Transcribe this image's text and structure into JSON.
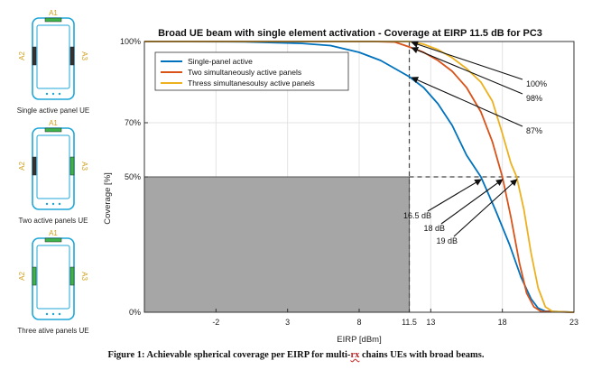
{
  "left_panel": {
    "phones": [
      {
        "caption": "Single active panel UE",
        "antenna_labels": [
          "A1",
          "A2",
          "A3"
        ]
      },
      {
        "caption": "Two active panels UE",
        "antenna_labels": [
          "A1",
          "A2",
          "A3"
        ]
      },
      {
        "caption": "Three ative panels UE",
        "antenna_labels": [
          "A1",
          "A2",
          "A3"
        ]
      }
    ],
    "colors": {
      "outline": "#1ea6d8",
      "antenna": "#d4a017",
      "antenna_active": "#3cb44b"
    }
  },
  "figure_caption": {
    "prefix": "Figure 1: Achievable spherical coverage per EIRP for multi-",
    "rx": "rx",
    "suffix": " chains UEs with broad beams."
  },
  "chart_data": {
    "type": "line",
    "title": "Broad UE beam with single element activation - Coverage at EIRP 11.5 dB for PC3",
    "xlabel": "EIRP [dBm]",
    "ylabel": "Coverage [%]",
    "xlim": [
      -7,
      23
    ],
    "ylim": [
      0,
      100
    ],
    "x_ticks": [
      -2,
      3,
      8,
      11.5,
      13,
      18,
      23
    ],
    "y_ticks": [
      0,
      50,
      70,
      100
    ],
    "y_tick_labels": [
      "0%",
      "50%",
      "70%",
      "100%"
    ],
    "grid": true,
    "legend_position": "top-left",
    "series": [
      {
        "name": "Single-panel active",
        "color": "#0072bd",
        "points": [
          [
            -7,
            100
          ],
          [
            0,
            99.9
          ],
          [
            4,
            99.3
          ],
          [
            6,
            98.5
          ],
          [
            8,
            96
          ],
          [
            9.5,
            93
          ],
          [
            10.5,
            90
          ],
          [
            11.5,
            87
          ],
          [
            12.5,
            83
          ],
          [
            13.5,
            77
          ],
          [
            14.5,
            69
          ],
          [
            15.5,
            58
          ],
          [
            16.5,
            50
          ],
          [
            17.5,
            38
          ],
          [
            18.5,
            25
          ],
          [
            19.3,
            13
          ],
          [
            20,
            5
          ],
          [
            20.5,
            1.5
          ],
          [
            21,
            0.4
          ],
          [
            23,
            0
          ]
        ]
      },
      {
        "name": "Two simultaneously active panels",
        "color": "#d95319",
        "points": [
          [
            -7,
            100
          ],
          [
            9,
            100
          ],
          [
            10.5,
            99.8
          ],
          [
            11.5,
            98
          ],
          [
            12.5,
            96
          ],
          [
            13.5,
            93
          ],
          [
            14.5,
            89
          ],
          [
            15.5,
            83
          ],
          [
            16.5,
            74
          ],
          [
            17.3,
            63
          ],
          [
            18,
            50
          ],
          [
            18.6,
            35
          ],
          [
            19.2,
            18
          ],
          [
            19.7,
            7
          ],
          [
            20.2,
            2
          ],
          [
            20.7,
            0.3
          ],
          [
            23,
            0
          ]
        ]
      },
      {
        "name": "Thress simultanesoulsy active panels",
        "color": "#edb120",
        "points": [
          [
            -7,
            100
          ],
          [
            10,
            100
          ],
          [
            11.5,
            100
          ],
          [
            12.5,
            99
          ],
          [
            13.5,
            97
          ],
          [
            14.5,
            94
          ],
          [
            15.5,
            90
          ],
          [
            16.5,
            85
          ],
          [
            17.3,
            78
          ],
          [
            18,
            66
          ],
          [
            18.6,
            55
          ],
          [
            19,
            50
          ],
          [
            19.5,
            38
          ],
          [
            20,
            22
          ],
          [
            20.5,
            9
          ],
          [
            21,
            2
          ],
          [
            21.5,
            0.3
          ],
          [
            23,
            0
          ]
        ]
      }
    ],
    "annotations": [
      {
        "text": "100%",
        "target": [
          11.5,
          100
        ]
      },
      {
        "text": "98%",
        "target": [
          11.5,
          98
        ]
      },
      {
        "text": "87%",
        "target": [
          11.5,
          87
        ]
      },
      {
        "text": "16.5 dB",
        "target": [
          16.5,
          50
        ]
      },
      {
        "text": "18 dB",
        "target": [
          18,
          50
        ]
      },
      {
        "text": "19 dB",
        "target": [
          19,
          50
        ]
      }
    ],
    "reference_lines": {
      "eirp": 11.5,
      "coverage": 50
    },
    "shaded_region": {
      "x": [
        -7,
        11.5
      ],
      "y": [
        0,
        50
      ],
      "color": "#a6a6a6"
    }
  }
}
